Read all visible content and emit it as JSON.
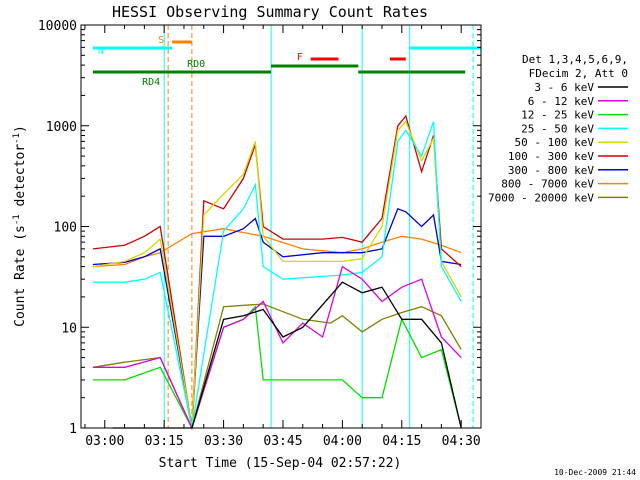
{
  "chart_data": {
    "type": "line",
    "title": "HESSI Observing Summary Count Rates",
    "xlabel": "Start Time (15-Sep-04 02:57:22)",
    "ylabel_main": "Count Rate (s",
    "ylabel_sup1": "-1",
    "ylabel_mid": " detector",
    "ylabel_sup2": "-1",
    "ylabel_end": ")",
    "yscale": "log",
    "ylim": [
      1,
      10000
    ],
    "xlim": [
      "02:54",
      "04:35"
    ],
    "xticks": [
      {
        "t": "03:00",
        "label": "03:00"
      },
      {
        "t": "03:15",
        "label": "03:15"
      },
      {
        "t": "03:30",
        "label": "03:30"
      },
      {
        "t": "03:45",
        "label": "03:45"
      },
      {
        "t": "04:00",
        "label": "04:00"
      },
      {
        "t": "04:15",
        "label": "04:15"
      },
      {
        "t": "04:30",
        "label": "04:30"
      }
    ],
    "yticks": [
      {
        "v": 10000,
        "label": "10000"
      },
      {
        "v": 1000,
        "label": "1000"
      },
      {
        "v": 100,
        "label": "100"
      },
      {
        "v": 10,
        "label": "10"
      },
      {
        "v": 1,
        "label": "1"
      }
    ],
    "legend_header": [
      "Det 1,3,4,5,6,9,",
      "FDecim 2, Att 0"
    ],
    "legend_position": "right",
    "series": [
      {
        "name": "3 - 6 keV",
        "color": "#000000",
        "x": [
          "03:02",
          "03:08",
          "03:14",
          "03:16",
          "03:22",
          "03:30",
          "03:35",
          "03:40",
          "03:45",
          "03:50",
          "04:00",
          "04:05",
          "04:10",
          "04:15",
          "04:20",
          "04:25",
          "04:30"
        ],
        "y": [
          1,
          1,
          1,
          1,
          1,
          12,
          13,
          15,
          8,
          10,
          28,
          22,
          25,
          12,
          12,
          7,
          1
        ]
      },
      {
        "name": "6 - 12 keV",
        "color": "#e000e0",
        "x": [
          "02:57",
          "03:05",
          "03:14",
          "03:22",
          "03:30",
          "03:35",
          "03:40",
          "03:45",
          "03:50",
          "03:55",
          "04:00",
          "04:05",
          "04:10",
          "04:15",
          "04:20",
          "04:25",
          "04:30"
        ],
        "y": [
          4,
          4,
          5,
          1,
          10,
          12,
          18,
          7,
          11,
          8,
          40,
          30,
          18,
          25,
          30,
          8,
          5
        ]
      },
      {
        "name": "12 - 25 keV",
        "color": "#00e000",
        "x": [
          "02:57",
          "03:05",
          "03:14",
          "03:22",
          "03:30",
          "03:35",
          "03:38",
          "03:40",
          "03:45",
          "04:00",
          "04:05",
          "04:10",
          "04:15",
          "04:20",
          "04:25",
          "04:30"
        ],
        "y": [
          3,
          3,
          4,
          1,
          10,
          12,
          16,
          3,
          3,
          3,
          2,
          2,
          12,
          5,
          6,
          1
        ]
      },
      {
        "name": "25 - 50 keV",
        "color": "#00ffff",
        "x": [
          "02:57",
          "03:05",
          "03:10",
          "03:14",
          "03:22",
          "03:30",
          "03:35",
          "03:38",
          "03:40",
          "03:45",
          "03:55",
          "04:00",
          "04:05",
          "04:10",
          "04:14",
          "04:16",
          "04:20",
          "04:23",
          "04:25",
          "04:30"
        ],
        "y": [
          28,
          28,
          30,
          35,
          1,
          90,
          150,
          260,
          40,
          30,
          32,
          33,
          35,
          50,
          700,
          900,
          500,
          1100,
          40,
          18
        ]
      },
      {
        "name": "50 - 100 keV",
        "color": "#d8d800",
        "x": [
          "02:57",
          "03:05",
          "03:10",
          "03:14",
          "03:22",
          "03:25",
          "03:30",
          "03:35",
          "03:38",
          "03:40",
          "03:45",
          "03:55",
          "04:00",
          "04:05",
          "04:10",
          "04:14",
          "04:16",
          "04:20",
          "04:23",
          "04:25",
          "04:30"
        ],
        "y": [
          40,
          45,
          55,
          75,
          1,
          130,
          210,
          330,
          700,
          80,
          45,
          45,
          45,
          48,
          100,
          900,
          1100,
          450,
          750,
          45,
          20
        ]
      },
      {
        "name": "100 - 300 keV",
        "color": "#d00000",
        "x": [
          "02:57",
          "03:05",
          "03:10",
          "03:14",
          "03:22",
          "03:25",
          "03:30",
          "03:35",
          "03:38",
          "03:40",
          "03:45",
          "03:55",
          "04:00",
          "04:05",
          "04:10",
          "04:14",
          "04:16",
          "04:20",
          "04:23",
          "04:25",
          "04:30"
        ],
        "y": [
          60,
          65,
          80,
          100,
          1,
          180,
          150,
          300,
          650,
          100,
          75,
          75,
          78,
          70,
          120,
          1000,
          1250,
          350,
          800,
          60,
          40
        ]
      },
      {
        "name": "300 - 800 keV",
        "color": "#0000d0",
        "x": [
          "02:57",
          "03:05",
          "03:10",
          "03:14",
          "03:22",
          "03:25",
          "03:30",
          "03:35",
          "03:38",
          "03:40",
          "03:45",
          "03:55",
          "04:00",
          "04:05",
          "04:10",
          "04:14",
          "04:16",
          "04:20",
          "04:23",
          "04:25",
          "04:30"
        ],
        "y": [
          42,
          44,
          50,
          60,
          1,
          80,
          80,
          95,
          120,
          70,
          50,
          55,
          55,
          55,
          60,
          150,
          140,
          100,
          130,
          45,
          42
        ]
      },
      {
        "name": "800 - 7000 keV",
        "color": "#ff8000",
        "x": [
          "02:57",
          "03:05",
          "03:10",
          "03:14",
          "03:22",
          "03:30",
          "03:40",
          "03:50",
          "04:00",
          "04:05",
          "04:10",
          "04:15",
          "04:20",
          "04:25",
          "04:30"
        ],
        "y": [
          40,
          42,
          50,
          55,
          85,
          95,
          80,
          60,
          55,
          60,
          70,
          80,
          75,
          65,
          55
        ]
      },
      {
        "name": "7000 - 20000 keV",
        "color": "#808000",
        "x": [
          "02:57",
          "03:05",
          "03:14",
          "03:22",
          "03:30",
          "03:40",
          "03:50",
          "03:57",
          "04:00",
          "04:05",
          "04:10",
          "04:15",
          "04:20",
          "04:25",
          "04:30"
        ],
        "y": [
          4,
          4.5,
          5,
          1,
          16,
          17,
          12,
          11,
          13,
          9,
          12,
          14,
          16,
          13,
          6
        ]
      }
    ],
    "annotation_bars": [
      {
        "label": "S",
        "color": "#ff8000",
        "start": "03:17",
        "end": "03:22",
        "row": "top"
      },
      {
        "label": "N",
        "color": "#00ffff",
        "start": "02:57",
        "end": "03:17",
        "row": "upper"
      },
      {
        "label": "",
        "color": "#00ffff",
        "start": "04:17",
        "end": "04:35",
        "row": "upper"
      },
      {
        "label": "RD4",
        "color": "#008000",
        "start": "02:57",
        "end": "03:17",
        "row": "lower"
      },
      {
        "label": "RD0",
        "color": "#008000",
        "start": "03:17",
        "end": "03:42",
        "row": "lower"
      },
      {
        "label": "",
        "color": "#008000",
        "start": "03:42",
        "end": "04:04",
        "row": "mid"
      },
      {
        "label": "",
        "color": "#008000",
        "start": "04:04",
        "end": "04:31",
        "row": "lower"
      },
      {
        "label": "F",
        "color": "#ff0000",
        "start": "03:52",
        "end": "03:59",
        "row": "flare"
      },
      {
        "label": "",
        "color": "#ff0000",
        "start": "04:12",
        "end": "04:16",
        "row": "flare"
      }
    ],
    "vlines": [
      {
        "t": "03:15",
        "color": "#00ffff",
        "style": "solid"
      },
      {
        "t": "03:16",
        "color": "#ff8000",
        "style": "dashed"
      },
      {
        "t": "03:22",
        "color": "#ff8000",
        "style": "dashed"
      },
      {
        "t": "03:42",
        "color": "#00ffff",
        "style": "solid"
      },
      {
        "t": "04:05",
        "color": "#00ffff",
        "style": "solid"
      },
      {
        "t": "04:17",
        "color": "#00ffff",
        "style": "solid"
      },
      {
        "t": "04:33",
        "color": "#00ffff",
        "style": "dashed"
      }
    ],
    "grid": false
  },
  "footer": {
    "timestamp": "10-Dec-2009 21:44"
  }
}
